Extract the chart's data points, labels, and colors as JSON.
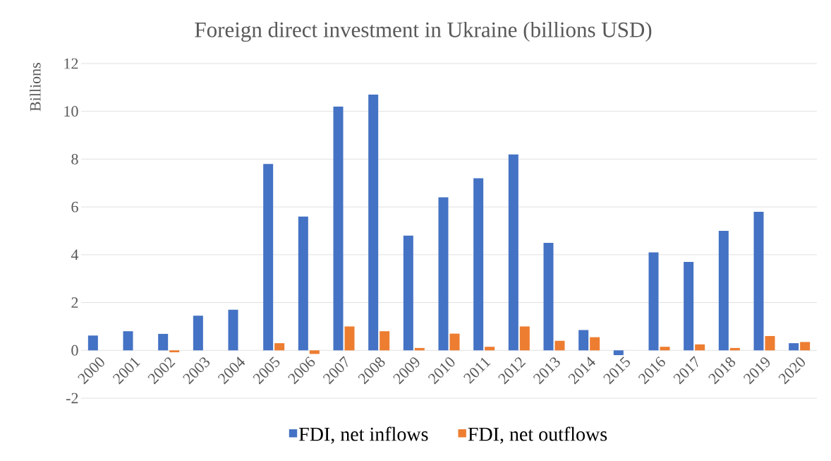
{
  "chart_data": {
    "type": "bar",
    "title": "Foreign direct investment in Ukraine (billions USD)",
    "ylabel": "Billions",
    "categories": [
      "2000",
      "2001",
      "2002",
      "2003",
      "2004",
      "2005",
      "2006",
      "2007",
      "2008",
      "2009",
      "2010",
      "2011",
      "2012",
      "2013",
      "2014",
      "2015",
      "2016",
      "2017",
      "2018",
      "2019",
      "2020"
    ],
    "series": [
      {
        "name": "FDI, net inflows",
        "color": "#4472c4",
        "values": [
          0.62,
          0.8,
          0.69,
          1.45,
          1.7,
          7.8,
          5.6,
          10.2,
          10.7,
          4.8,
          6.4,
          7.2,
          8.2,
          4.5,
          0.85,
          -0.2,
          4.1,
          3.7,
          5.0,
          5.8,
          0.3
        ]
      },
      {
        "name": "FDI, net outflows",
        "color": "#ed7d31",
        "values": [
          null,
          null,
          -0.08,
          null,
          null,
          0.3,
          -0.15,
          1.0,
          0.8,
          0.1,
          0.7,
          0.15,
          1.0,
          0.4,
          0.55,
          null,
          0.15,
          0.25,
          0.1,
          0.6,
          0.35
        ]
      }
    ],
    "ylim": [
      -2,
      12
    ],
    "yticks": [
      -2,
      0,
      2,
      4,
      6,
      8,
      10,
      12
    ],
    "grid": "y",
    "legend": "bottom"
  }
}
